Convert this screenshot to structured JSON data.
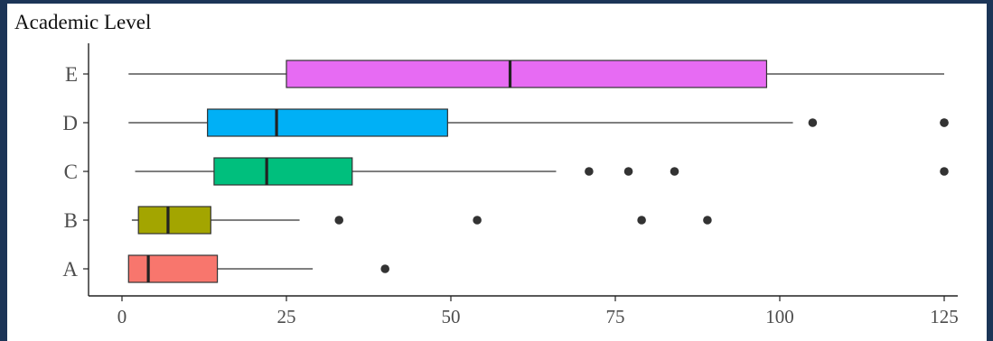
{
  "chart_data": {
    "type": "boxplot",
    "title": "",
    "ylabel": "Academic Level",
    "xlabel": "",
    "orientation": "horizontal",
    "xlim": [
      -5,
      128
    ],
    "xticks": [
      0,
      25,
      50,
      75,
      100,
      125
    ],
    "xtick_labels": [
      "0",
      "25",
      "50",
      "75",
      "100",
      "125"
    ],
    "grid": false,
    "legend": "none",
    "categories": [
      "A",
      "B",
      "C",
      "D",
      "E"
    ],
    "series": [
      {
        "category": "A",
        "color": "#F8766D",
        "whisker_low": 1,
        "q1": 1,
        "median": 4,
        "q3": 14.5,
        "whisker_high": 29,
        "outliers": [
          40
        ]
      },
      {
        "category": "B",
        "color": "#A3A500",
        "whisker_low": 1.5,
        "q1": 2.5,
        "median": 7,
        "q3": 13.5,
        "whisker_high": 27,
        "outliers": [
          33,
          54,
          79,
          89
        ]
      },
      {
        "category": "C",
        "color": "#00BF7D",
        "whisker_low": 2,
        "q1": 14,
        "median": 22,
        "q3": 35,
        "whisker_high": 66,
        "outliers": [
          71,
          77,
          84,
          125
        ]
      },
      {
        "category": "D",
        "color": "#00B0F6",
        "whisker_low": 1,
        "q1": 13,
        "median": 23.5,
        "q3": 49.5,
        "whisker_high": 102,
        "outliers": [
          105,
          125,
          125
        ]
      },
      {
        "category": "E",
        "color": "#E76BF3",
        "whisker_low": 1,
        "q1": 25,
        "median": 59,
        "q3": 98,
        "whisker_high": 125,
        "outliers": []
      }
    ]
  }
}
